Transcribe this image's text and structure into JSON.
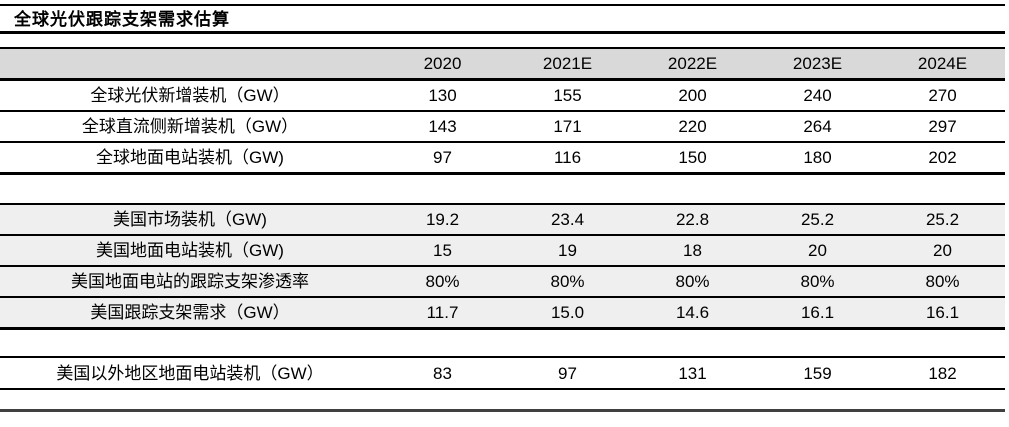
{
  "title": "全球光伏跟踪支架需求估算",
  "colors": {
    "header_bg": "#d9d9d9",
    "band_bg": "#efefef",
    "rule": "#000000",
    "bottom_rule": "#404040"
  },
  "table": {
    "columns": [
      "2020",
      "2021E",
      "2022E",
      "2023E",
      "2024E"
    ],
    "global_section": {
      "rows": [
        {
          "label": "全球光伏新增装机（GW）",
          "values": [
            "130",
            "155",
            "200",
            "240",
            "270"
          ]
        },
        {
          "label": "全球直流侧新增装机（GW）",
          "values": [
            "143",
            "171",
            "220",
            "264",
            "297"
          ]
        },
        {
          "label": "全球地面电站装机（GW)",
          "values": [
            "97",
            "116",
            "150",
            "180",
            "202"
          ]
        }
      ]
    },
    "us_section": {
      "rows": [
        {
          "label": "美国市场装机（GW)",
          "values": [
            "19.2",
            "23.4",
            "22.8",
            "25.2",
            "25.2"
          ]
        },
        {
          "label": "美国地面电站装机（GW)",
          "values": [
            "15",
            "19",
            "18",
            "20",
            "20"
          ]
        },
        {
          "label": "美国地面电站的跟踪支架渗透率",
          "values": [
            "80%",
            "80%",
            "80%",
            "80%",
            "80%"
          ]
        },
        {
          "label": "美国跟踪支架需求（GW）",
          "values": [
            "11.7",
            "15.0",
            "14.6",
            "16.1",
            "16.1"
          ]
        }
      ]
    },
    "row_section": {
      "rows": [
        {
          "label": "美国以外地区地面电站装机（GW）",
          "values": [
            "83",
            "97",
            "131",
            "159",
            "182"
          ]
        }
      ]
    }
  }
}
